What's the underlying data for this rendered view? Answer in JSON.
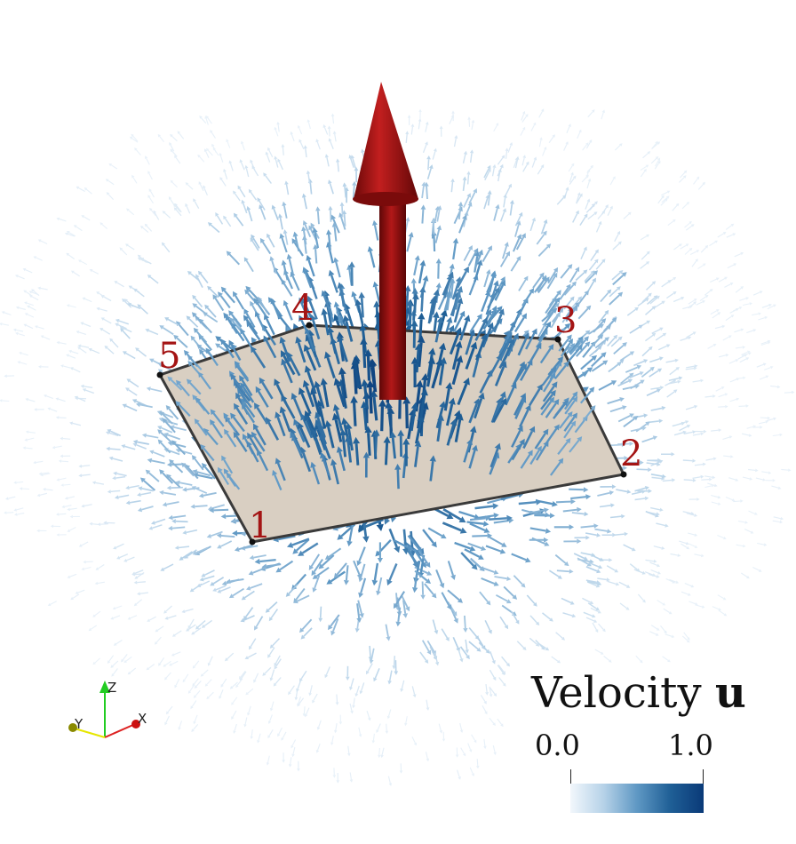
{
  "vertices": [
    {
      "label": "1"
    },
    {
      "label": "2"
    },
    {
      "label": "3"
    },
    {
      "label": "4"
    },
    {
      "label": "5"
    }
  ],
  "axes": {
    "z": "Z",
    "y": "Y",
    "x": "X"
  },
  "legend": {
    "title": "Velocity",
    "symbol": "u",
    "min_label": "0.0",
    "max_label": "1.0",
    "colormap": [
      "#f2f7fc",
      "#b6d2e8",
      "#5f98c4",
      "#1f5f96",
      "#0a3a78"
    ]
  },
  "colors": {
    "plate_fill": "#d9cfc2",
    "plate_edge": "#3a3a3a",
    "central_arrow": "#8e0f0f",
    "vertex_label": "#a41414"
  }
}
